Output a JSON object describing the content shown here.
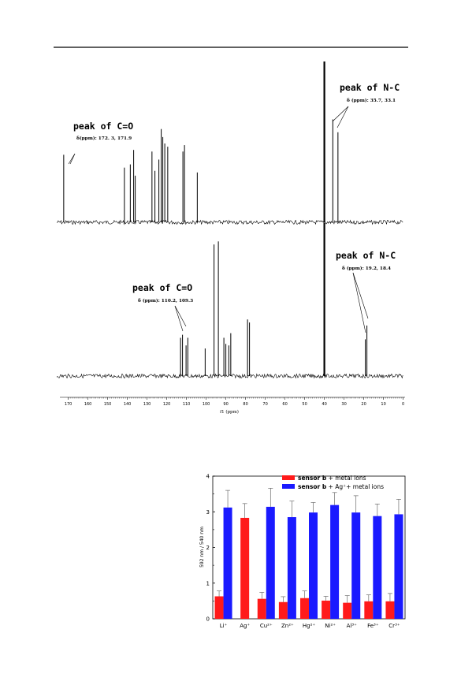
{
  "nmr": {
    "axis_ticks": [
      "170",
      "160",
      "150",
      "140",
      "130",
      "120",
      "110",
      "100",
      "90",
      "80",
      "70",
      "60",
      "50",
      "40",
      "30",
      "20",
      "10",
      "0"
    ],
    "axis_label": "f1 (ppm)",
    "top": {
      "co_title": "peak of C=O",
      "co_values": "δ(ppm): 172. 3, 171.9",
      "nc_title": "peak of N-C",
      "nc_values": "δ (ppm): 35.7, 33.1"
    },
    "bottom": {
      "co_title": "peak of C=O",
      "co_values": "δ (ppm): 110.2, 109.3",
      "nc_title": "peak of N-C",
      "nc_values": "δ (ppm): 19.2, 18.4"
    }
  },
  "chart_data": [
    {
      "type": "line",
      "x_range": [
        175,
        0
      ],
      "x_reversed": true,
      "xlabel": "f1 (ppm)",
      "series": [
        {
          "x": [
            172.3,
            141.5,
            138.5,
            136.8,
            136.0,
            127.5,
            126.0,
            124.0,
            122.8,
            122.0,
            121.0,
            119.5,
            111.8,
            111.0,
            104.5,
            40.0,
            35.7,
            33.1
          ],
          "values": [
            0.42,
            0.34,
            0.36,
            0.45,
            0.29,
            0.44,
            0.32,
            0.39,
            0.58,
            0.53,
            0.49,
            0.47,
            0.44,
            0.48,
            0.31,
            1.0,
            0.64,
            0.56
          ]
        },
        {
          "x": [
            113.0,
            112.0,
            110.2,
            109.3,
            100.5,
            96.0,
            93.8,
            91.0,
            90.0,
            88.5,
            87.5,
            79.0,
            78.0,
            40.0,
            19.2,
            18.4
          ],
          "values": [
            0.25,
            0.27,
            0.2,
            0.25,
            0.18,
            0.86,
            0.88,
            0.25,
            0.21,
            0.2,
            0.28,
            0.37,
            0.35,
            1.0,
            0.24,
            0.33
          ]
        }
      ]
    },
    {
      "type": "bar",
      "categories": [
        "Li⁺",
        "Ag⁺",
        "Cu²⁺",
        "Zn²⁺",
        "Hg²⁺",
        "Ni²⁺",
        "Al³⁺",
        "Fe³⁺",
        "Cr³⁺"
      ],
      "ylabel": "592 nm / 540 nm",
      "ylim": [
        0,
        4
      ],
      "yticks": [
        "0",
        "1",
        "2",
        "3",
        "4"
      ],
      "legend": {
        "entries": [
          {
            "bold": "sensor b",
            "rest": " + metal ions",
            "color": "#ff1a1a"
          },
          {
            "bold": "sensor b",
            "rest": " + Ag⁺+ metal ions",
            "color": "#1a1aff"
          }
        ],
        "placement": "top-right"
      },
      "series": [
        {
          "color": "#ff1a1a",
          "values": [
            0.63,
            2.83,
            0.56,
            0.47,
            0.58,
            0.51,
            0.45,
            0.49,
            0.49
          ],
          "errors": [
            0.15,
            0.4,
            0.18,
            0.15,
            0.2,
            0.12,
            0.2,
            0.18,
            0.22
          ]
        },
        {
          "color": "#1a1aff",
          "values": [
            3.12,
            null,
            3.14,
            2.85,
            2.98,
            3.19,
            2.98,
            2.88,
            2.93
          ],
          "errors": [
            0.48,
            null,
            0.52,
            0.45,
            0.28,
            0.35,
            0.47,
            0.34,
            0.42
          ]
        }
      ]
    }
  ]
}
